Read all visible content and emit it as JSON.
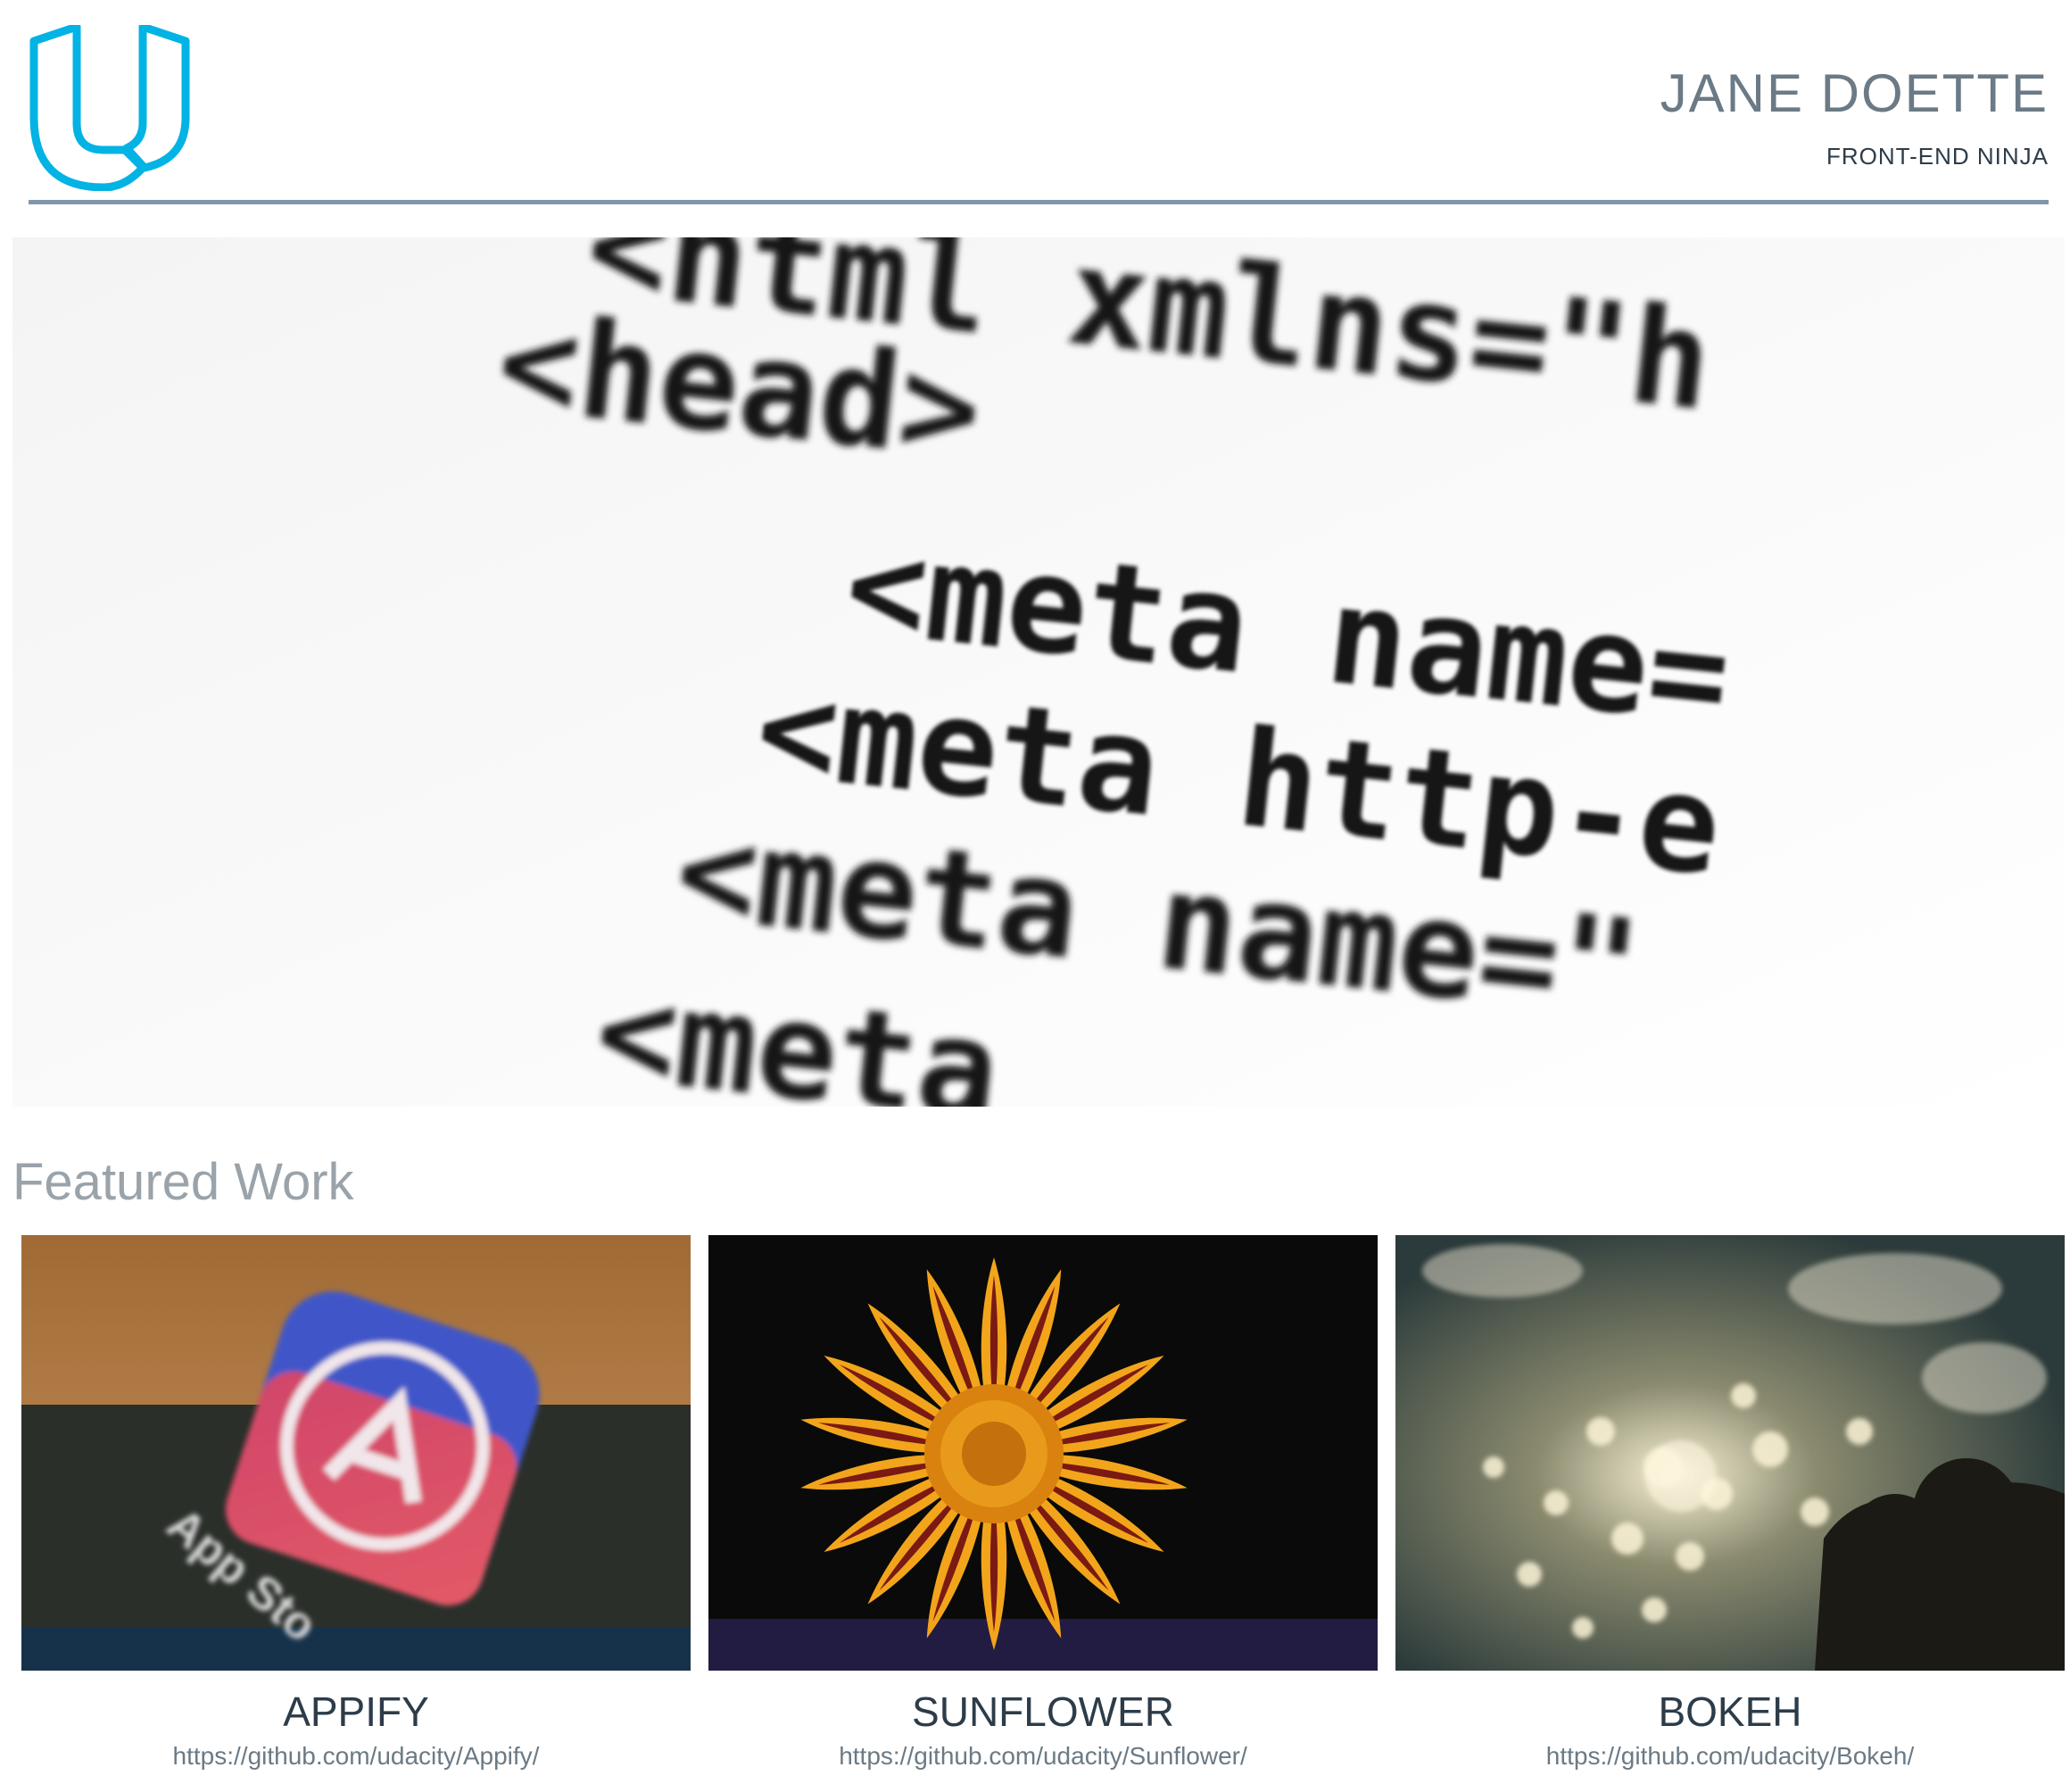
{
  "header": {
    "logo_icon": "udacity-logo-icon",
    "name": "JANE DOETTE",
    "title": "FRONT-END NINJA",
    "accent": "#02b3e4",
    "divider_color": "#7d97ad"
  },
  "hero": {
    "code_lines": [
      "<html xmlns=\"h",
      "<head>",
      "<meta name=",
      "<meta http-e",
      "<meta name=\"",
      "<meta"
    ]
  },
  "featured": {
    "heading": "Featured Work",
    "projects": [
      {
        "title": "APPIFY",
        "link": "https://github.com/udacity/Appify/",
        "thumb_text": "App Sto"
      },
      {
        "title": "SUNFLOWER",
        "link": "https://github.com/udacity/Sunflower/"
      },
      {
        "title": "BOKEH",
        "link": "https://github.com/udacity/Bokeh/"
      }
    ]
  }
}
